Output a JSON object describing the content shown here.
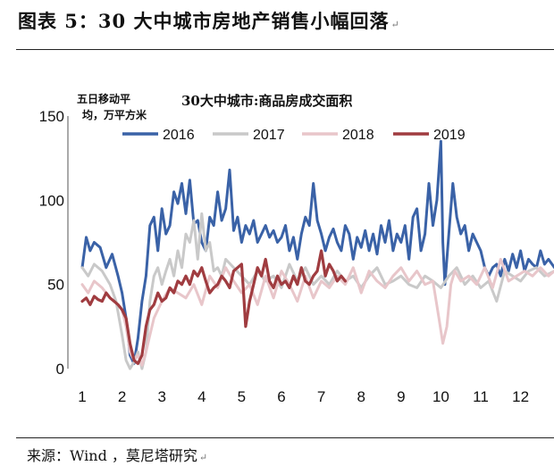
{
  "figure": {
    "title": "图表 5：30 大中城市房地产销售小幅回落",
    "return_mark": "↵",
    "source": "来源：Wind ，莫尼塔研究",
    "source_mark": "↵"
  },
  "chart_data": {
    "type": "line",
    "title": "30大中城市:商品房成交面积",
    "unit_label_lines": [
      "五日移动平",
      "均，万平方米"
    ],
    "xlabel": "",
    "ylabel": "五日移动平均，万平方米",
    "x_ticks": [
      "1",
      "2",
      "3",
      "4",
      "5",
      "6",
      "7",
      "8",
      "9",
      "10",
      "11",
      "12"
    ],
    "y_ticks": [
      0,
      50,
      100,
      150
    ],
    "ylim": [
      0,
      150
    ],
    "xlim": [
      1,
      12.85
    ],
    "grid": false,
    "legend_position": "top",
    "series": [
      {
        "name": "2016",
        "color": "#3a62a7",
        "x": [
          1,
          1.1,
          1.2,
          1.3,
          1.45,
          1.6,
          1.75,
          1.9,
          2.0,
          2.1,
          2.2,
          2.3,
          2.4,
          2.5,
          2.6,
          2.7,
          2.8,
          2.9,
          3.0,
          3.1,
          3.2,
          3.3,
          3.4,
          3.5,
          3.6,
          3.7,
          3.8,
          3.9,
          4.0,
          4.1,
          4.2,
          4.3,
          4.4,
          4.5,
          4.6,
          4.7,
          4.8,
          4.9,
          5.0,
          5.1,
          5.2,
          5.3,
          5.4,
          5.5,
          5.6,
          5.7,
          5.8,
          5.9,
          6.0,
          6.1,
          6.2,
          6.3,
          6.4,
          6.5,
          6.6,
          6.7,
          6.8,
          6.9,
          7.0,
          7.1,
          7.2,
          7.3,
          7.4,
          7.5,
          7.6,
          7.7,
          7.8,
          7.9,
          8.0,
          8.1,
          8.2,
          8.3,
          8.4,
          8.5,
          8.6,
          8.7,
          8.8,
          8.9,
          9.0,
          9.1,
          9.2,
          9.3,
          9.4,
          9.5,
          9.6,
          9.7,
          9.8,
          9.9,
          10.0,
          10.05,
          10.1,
          10.2,
          10.3,
          10.4,
          10.5,
          10.6,
          10.7,
          10.8,
          10.9,
          11.0,
          11.1,
          11.2,
          11.3,
          11.4,
          11.5,
          11.6,
          11.7,
          11.8,
          11.9,
          12.0,
          12.1,
          12.2,
          12.3,
          12.4,
          12.5,
          12.6,
          12.7,
          12.85
        ],
        "values": [
          60,
          78,
          70,
          75,
          72,
          60,
          68,
          55,
          45,
          30,
          8,
          3,
          18,
          40,
          55,
          85,
          90,
          70,
          95,
          80,
          85,
          105,
          98,
          110,
          92,
          112,
          86,
          88,
          75,
          70,
          90,
          85,
          105,
          88,
          95,
          118,
          82,
          90,
          75,
          85,
          80,
          88,
          75,
          80,
          85,
          78,
          82,
          75,
          78,
          85,
          70,
          78,
          65,
          80,
          90,
          85,
          110,
          88,
          80,
          70,
          78,
          83,
          75,
          70,
          85,
          80,
          65,
          78,
          72,
          82,
          70,
          80,
          68,
          85,
          75,
          88,
          70,
          80,
          75,
          85,
          65,
          90,
          95,
          70,
          80,
          110,
          85,
          100,
          135,
          75,
          50,
          80,
          110,
          90,
          80,
          85,
          70,
          80,
          75,
          70,
          60,
          55,
          60,
          62,
          55,
          65,
          58,
          68,
          60,
          70,
          58,
          65,
          62,
          60,
          70,
          62,
          65,
          60
        ]
      },
      {
        "name": "2017",
        "color": "#c9c9c9",
        "x": [
          1,
          1.15,
          1.3,
          1.5,
          1.7,
          1.85,
          2.0,
          2.1,
          2.2,
          2.3,
          2.4,
          2.5,
          2.6,
          2.7,
          2.8,
          2.9,
          3.0,
          3.1,
          3.2,
          3.3,
          3.4,
          3.5,
          3.6,
          3.7,
          3.8,
          3.9,
          4.0,
          4.1,
          4.2,
          4.3,
          4.4,
          4.5,
          4.6,
          4.8,
          5.0,
          5.2,
          5.4,
          5.6,
          5.8,
          6.0,
          6.2,
          6.4,
          6.6,
          6.8,
          7.0,
          7.2,
          7.4,
          7.6,
          7.8,
          8.0,
          8.2,
          8.4,
          8.6,
          8.8,
          9.0,
          9.2,
          9.4,
          9.6,
          9.8,
          10.0,
          10.2,
          10.4,
          10.6,
          10.8,
          11.0,
          11.2,
          11.4,
          11.6,
          11.8,
          12.0,
          12.2,
          12.4,
          12.6,
          12.85
        ],
        "values": [
          60,
          55,
          62,
          58,
          50,
          40,
          20,
          5,
          0,
          4,
          10,
          0,
          10,
          40,
          55,
          60,
          50,
          58,
          65,
          55,
          70,
          60,
          80,
          75,
          88,
          65,
          92,
          70,
          75,
          58,
          60,
          55,
          65,
          60,
          55,
          50,
          58,
          52,
          55,
          48,
          62,
          52,
          60,
          50,
          55,
          50,
          58,
          52,
          55,
          48,
          55,
          60,
          50,
          52,
          55,
          50,
          48,
          55,
          52,
          48,
          55,
          60,
          50,
          55,
          48,
          52,
          40,
          58,
          55,
          52,
          58,
          60,
          55,
          58
        ]
      },
      {
        "name": "2018",
        "color": "#e8c6ca",
        "x": [
          1,
          1.15,
          1.3,
          1.5,
          1.7,
          1.9,
          2.0,
          2.1,
          2.2,
          2.3,
          2.4,
          2.5,
          2.6,
          2.7,
          2.8,
          2.9,
          3.0,
          3.2,
          3.4,
          3.6,
          3.8,
          4.0,
          4.2,
          4.4,
          4.6,
          4.8,
          5.0,
          5.2,
          5.4,
          5.6,
          5.8,
          6.0,
          6.2,
          6.4,
          6.6,
          6.8,
          7.0,
          7.2,
          7.4,
          7.6,
          7.8,
          8.0,
          8.2,
          8.4,
          8.6,
          8.8,
          9.0,
          9.2,
          9.4,
          9.6,
          9.8,
          9.95,
          10.05,
          10.15,
          10.25,
          10.35,
          10.5,
          10.7,
          10.9,
          11.1,
          11.3,
          11.5,
          11.7,
          11.9,
          12.1,
          12.3,
          12.5,
          12.7,
          12.85
        ],
        "values": [
          50,
          45,
          52,
          48,
          42,
          38,
          35,
          25,
          10,
          5,
          8,
          2,
          10,
          20,
          30,
          35,
          40,
          48,
          45,
          42,
          50,
          38,
          55,
          48,
          60,
          52,
          45,
          50,
          38,
          55,
          42,
          58,
          50,
          40,
          55,
          42,
          52,
          48,
          55,
          50,
          60,
          45,
          58,
          52,
          48,
          55,
          60,
          52,
          58,
          50,
          52,
          30,
          15,
          25,
          50,
          58,
          52,
          55,
          50,
          60,
          48,
          65,
          52,
          55,
          58,
          55,
          60,
          55,
          58
        ]
      },
      {
        "name": "2019",
        "color": "#a03c40",
        "x": [
          1,
          1.1,
          1.2,
          1.3,
          1.4,
          1.5,
          1.6,
          1.7,
          1.8,
          1.9,
          2.0,
          2.1,
          2.2,
          2.3,
          2.4,
          2.5,
          2.6,
          2.7,
          2.8,
          2.9,
          3.0,
          3.1,
          3.2,
          3.3,
          3.4,
          3.5,
          3.6,
          3.7,
          3.8,
          3.9,
          4.0,
          4.1,
          4.2,
          4.3,
          4.4,
          4.5,
          4.6,
          4.7,
          4.8,
          4.9,
          5.0,
          5.05,
          5.1,
          5.2,
          5.3,
          5.4,
          5.5,
          5.6,
          5.7,
          5.8,
          5.9,
          6.0,
          6.1,
          6.2,
          6.3,
          6.4,
          6.5,
          6.6,
          6.7,
          6.8,
          6.9,
          7.0,
          7.1,
          7.2,
          7.3,
          7.4,
          7.5,
          7.6
        ],
        "values": [
          40,
          42,
          38,
          43,
          41,
          40,
          45,
          42,
          40,
          38,
          35,
          30,
          15,
          5,
          3,
          8,
          25,
          35,
          38,
          45,
          40,
          42,
          48,
          45,
          52,
          50,
          55,
          50,
          58,
          55,
          60,
          52,
          45,
          48,
          50,
          55,
          52,
          48,
          58,
          60,
          62,
          45,
          25,
          40,
          50,
          60,
          55,
          65,
          52,
          48,
          55,
          50,
          52,
          48,
          55,
          50,
          60,
          52,
          50,
          55,
          58,
          70,
          55,
          62,
          58,
          52,
          55,
          52
        ]
      }
    ]
  }
}
